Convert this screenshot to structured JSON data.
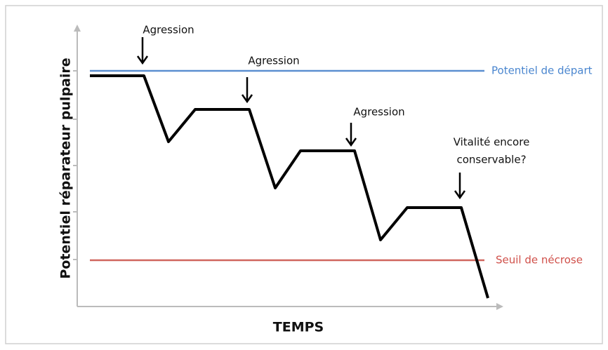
{
  "y_axis_label": "Potentiel réparateur pulpaire",
  "x_axis_label": "TEMPS",
  "reference_lines": [
    {
      "label": "Potentiel de départ"
    },
    {
      "label": "Seuil de nécrose"
    }
  ],
  "annotations": [
    {
      "lines": [
        "Agression"
      ]
    },
    {
      "lines": [
        "Agression"
      ]
    },
    {
      "lines": [
        "Agression"
      ]
    },
    {
      "lines": [
        "Vitalité encore",
        "conservable?"
      ]
    }
  ]
}
